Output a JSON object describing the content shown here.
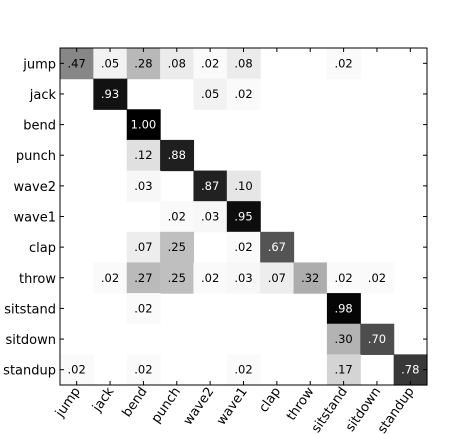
{
  "chart_data": {
    "type": "heatmap",
    "title": "",
    "xlabel": "",
    "ylabel": "",
    "rows": [
      "jump",
      "jack",
      "bend",
      "punch",
      "wave2",
      "wave1",
      "clap",
      "throw",
      "sitstand",
      "sitdown",
      "standup"
    ],
    "columns": [
      "jump",
      "jack",
      "bend",
      "punch",
      "wave2",
      "wave1",
      "clap",
      "throw",
      "sitstand",
      "sitdown",
      "standup"
    ],
    "values": [
      [
        0.47,
        0.05,
        0.28,
        0.08,
        0.02,
        0.08,
        null,
        null,
        0.02,
        null,
        null
      ],
      [
        null,
        0.93,
        null,
        null,
        0.05,
        0.02,
        null,
        null,
        null,
        null,
        null
      ],
      [
        null,
        null,
        1.0,
        null,
        null,
        null,
        null,
        null,
        null,
        null,
        null
      ],
      [
        null,
        null,
        0.12,
        0.88,
        null,
        null,
        null,
        null,
        null,
        null,
        null
      ],
      [
        null,
        null,
        0.03,
        null,
        0.87,
        0.1,
        null,
        null,
        null,
        null,
        null
      ],
      [
        null,
        null,
        null,
        0.02,
        0.03,
        0.95,
        null,
        null,
        null,
        null,
        null
      ],
      [
        null,
        null,
        0.07,
        0.25,
        null,
        0.02,
        0.67,
        null,
        null,
        null,
        null
      ],
      [
        null,
        0.02,
        0.27,
        0.25,
        0.02,
        0.03,
        0.07,
        0.32,
        0.02,
        0.02,
        null
      ],
      [
        null,
        null,
        0.02,
        null,
        null,
        null,
        null,
        null,
        0.98,
        null,
        null
      ],
      [
        null,
        null,
        null,
        null,
        null,
        null,
        null,
        null,
        0.3,
        0.7,
        null
      ],
      [
        0.02,
        null,
        0.02,
        null,
        null,
        0.02,
        null,
        null,
        0.17,
        null,
        0.78
      ]
    ],
    "labels": [
      [
        ".47",
        ".05",
        ".28",
        ".08",
        ".02",
        ".08",
        "",
        "",
        ".02",
        "",
        ""
      ],
      [
        "",
        ".93",
        "",
        "",
        ".05",
        ".02",
        "",
        "",
        "",
        "",
        ""
      ],
      [
        "",
        "",
        "1.00",
        "",
        "",
        "",
        "",
        "",
        "",
        "",
        ""
      ],
      [
        "",
        "",
        ".12",
        ".88",
        "",
        "",
        "",
        "",
        "",
        "",
        ""
      ],
      [
        "",
        "",
        ".03",
        "",
        ".87",
        ".10",
        "",
        "",
        "",
        "",
        ""
      ],
      [
        "",
        "",
        "",
        ".02",
        ".03",
        ".95",
        "",
        "",
        "",
        "",
        ""
      ],
      [
        "",
        "",
        ".07",
        ".25",
        "",
        ".02",
        ".67",
        "",
        "",
        "",
        ""
      ],
      [
        "",
        ".02",
        ".27",
        ".25",
        ".02",
        ".03",
        ".07",
        ".32",
        ".02",
        ".02",
        ""
      ],
      [
        "",
        "",
        ".02",
        "",
        "",
        "",
        "",
        "",
        ".98",
        "",
        ""
      ],
      [
        "",
        "",
        "",
        "",
        "",
        "",
        "",
        "",
        ".30",
        ".70",
        ""
      ],
      [
        ".02",
        "",
        ".02",
        "",
        "",
        ".02",
        "",
        "",
        ".17",
        "",
        ".78"
      ]
    ],
    "colormap": "gray_reversed",
    "range": [
      0,
      1
    ],
    "grid": false,
    "colors": {
      "frame": "#000000",
      "background": "#ffffff",
      "label_dark": "#000000",
      "label_light": "#ffffff"
    }
  }
}
